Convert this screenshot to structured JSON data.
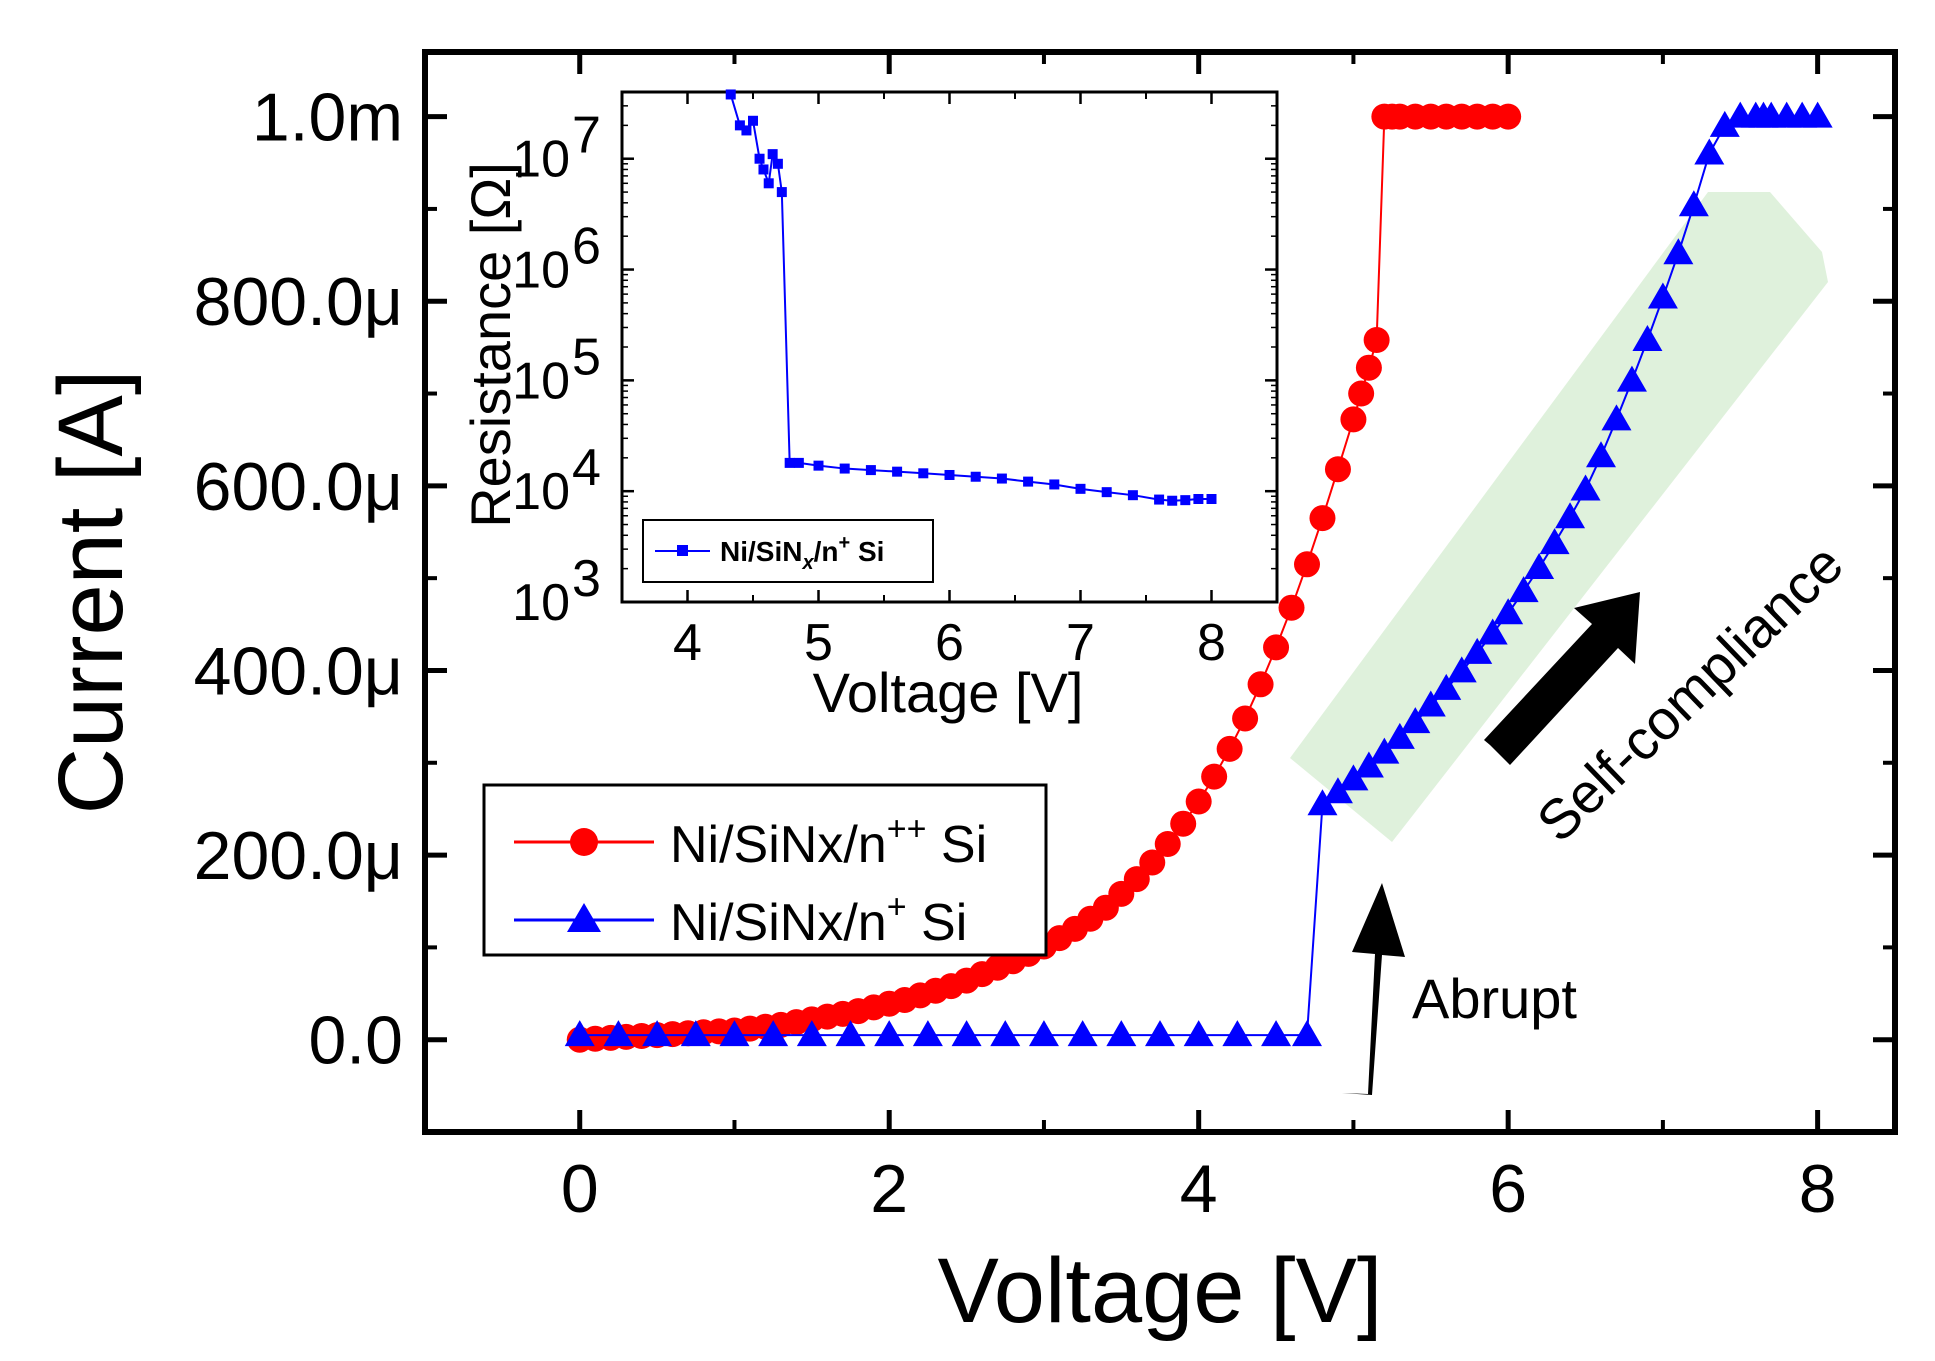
{
  "colors": {
    "red_series": "#ff0000",
    "blue_series": "#0000ff",
    "inset_series": "#0000ff",
    "highlight": "#dcefd8",
    "arrow": "#000000"
  },
  "chart_data": [
    {
      "id": "main",
      "type": "scatter",
      "title": "",
      "xlabel": "Voltage [V]",
      "ylabel": "Current [A]",
      "xlim": [
        -1,
        8.5
      ],
      "ylim": [
        -0.0001,
        0.00107
      ],
      "xticks": [
        0,
        2,
        4,
        6,
        8
      ],
      "xtick_labels": [
        "0",
        "2",
        "4",
        "6",
        "8"
      ],
      "yticks": [
        0,
        0.0002,
        0.0004,
        0.0006,
        0.0008,
        0.001
      ],
      "ytick_labels": [
        "0.0",
        "200.0μ",
        "400.0μ",
        "600.0μ",
        "800.0μ",
        "1.0m"
      ],
      "grid": false,
      "legend_position": "lower-left",
      "series": [
        {
          "name": "Ni/SiNx/n++ Si",
          "label_main": "Ni/SiNx/n",
          "label_sup": "++",
          "label_tail": " Si",
          "marker": "circle",
          "color": "#ff0000",
          "x": [
            0,
            0.1,
            0.2,
            0.3,
            0.4,
            0.5,
            0.6,
            0.7,
            0.8,
            0.9,
            1.0,
            1.1,
            1.2,
            1.3,
            1.4,
            1.5,
            1.6,
            1.7,
            1.8,
            1.9,
            2.0,
            2.1,
            2.2,
            2.3,
            2.4,
            2.5,
            2.6,
            2.7,
            2.8,
            2.9,
            3.0,
            3.1,
            3.2,
            3.3,
            3.4,
            3.5,
            3.6,
            3.7,
            3.8,
            3.9,
            4.0,
            4.1,
            4.2,
            4.3,
            4.4,
            4.5,
            4.6,
            4.7,
            4.8,
            4.9,
            5.0,
            5.05,
            5.1,
            5.15,
            5.2,
            5.25,
            5.3,
            5.4,
            5.5,
            5.6,
            5.7,
            5.8,
            5.9,
            6.0
          ],
          "y": [
            0,
            1e-06,
            2e-06,
            3e-06,
            4e-06,
            5e-06,
            6e-06,
            7e-06,
            8e-06,
            9e-06,
            1e-05,
            1.2e-05,
            1.4e-05,
            1.6e-05,
            1.9e-05,
            2.2e-05,
            2.5e-05,
            2.8e-05,
            3.1e-05,
            3.5e-05,
            3.9e-05,
            4.3e-05,
            4.8e-05,
            5.3e-05,
            5.8e-05,
            6.4e-05,
            7.1e-05,
            7.8e-05,
            8.5e-05,
            9.3e-05,
            0.000101,
            0.00011,
            0.00012,
            0.000131,
            0.000143,
            0.000158,
            0.000174,
            0.000192,
            0.000212,
            0.000234,
            0.000258,
            0.000285,
            0.000315,
            0.000348,
            0.000385,
            0.000425,
            0.000468,
            0.000515,
            0.000565,
            0.000618,
            0.000672,
            0.0007,
            0.000728,
            0.000758,
            0.001,
            0.001,
            0.001,
            0.001,
            0.001,
            0.001,
            0.001,
            0.001,
            0.001,
            0.001
          ]
        },
        {
          "name": "Ni/SiNx/n+ Si",
          "label_main": "Ni/SiNx/n",
          "label_sup": "+",
          "label_tail": " Si",
          "marker": "triangle",
          "color": "#0000ff",
          "x": [
            0,
            0.25,
            0.5,
            0.75,
            1.0,
            1.25,
            1.5,
            1.75,
            2.0,
            2.25,
            2.5,
            2.75,
            3.0,
            3.25,
            3.5,
            3.75,
            4.0,
            4.25,
            4.5,
            4.7,
            4.8,
            4.9,
            5.0,
            5.1,
            5.2,
            5.3,
            5.4,
            5.5,
            5.6,
            5.7,
            5.8,
            5.9,
            6.0,
            6.1,
            6.2,
            6.3,
            6.4,
            6.5,
            6.6,
            6.7,
            6.8,
            6.9,
            7.0,
            7.1,
            7.2,
            7.3,
            7.4,
            7.5,
            7.6,
            7.65,
            7.7,
            7.8,
            7.9,
            8.0
          ],
          "y": [
            5e-06,
            5e-06,
            5e-06,
            5e-06,
            5e-06,
            5e-06,
            5e-06,
            5e-06,
            5e-06,
            5e-06,
            5e-06,
            5e-06,
            5e-06,
            5e-06,
            5e-06,
            5e-06,
            5e-06,
            5e-06,
            5e-06,
            5e-06,
            0.000255,
            0.000268,
            0.000282,
            0.000296,
            0.000311,
            0.000327,
            0.000344,
            0.000362,
            0.00038,
            0.000399,
            0.000419,
            0.00044,
            0.000462,
            0.000486,
            0.000511,
            0.000538,
            0.000566,
            0.000596,
            0.000632,
            0.000672,
            0.000714,
            0.000758,
            0.000804,
            0.000852,
            0.000904,
            0.00096,
            0.00099,
            0.001,
            0.001,
            0.001,
            0.001,
            0.001,
            0.001,
            0.001
          ]
        }
      ],
      "annotations": [
        {
          "text": "Abrupt",
          "type": "arrow-label"
        },
        {
          "text": "Self-compliance",
          "type": "arrow-label",
          "rotation_deg": -44
        }
      ]
    },
    {
      "id": "inset",
      "type": "line",
      "title": "",
      "xlabel": "Voltage [V]",
      "ylabel": "Resistance [Ω]",
      "yscale": "log",
      "xlim": [
        3.5,
        8.5
      ],
      "ylim": [
        1000,
        40000000
      ],
      "xticks": [
        4,
        5,
        6,
        7,
        8
      ],
      "xtick_labels": [
        "4",
        "5",
        "6",
        "7",
        "8"
      ],
      "ytick_exponents": [
        3,
        4,
        5,
        6,
        7
      ],
      "ytick_base": "10",
      "grid": false,
      "legend_position": "lower-left",
      "series": [
        {
          "name": "Ni/SiNx/n+ Si",
          "label_a": "Ni/SiN",
          "label_sub": "x",
          "label_b": "/n",
          "label_sup": "+",
          "label_c": " Si",
          "marker": "square",
          "color": "#0000ff",
          "x": [
            4.33,
            4.4,
            4.45,
            4.5,
            4.55,
            4.58,
            4.62,
            4.65,
            4.69,
            4.72,
            4.78,
            4.85,
            5.0,
            5.2,
            5.4,
            5.6,
            5.8,
            6.0,
            6.2,
            6.4,
            6.6,
            6.8,
            7.0,
            7.2,
            7.4,
            7.6,
            7.7,
            7.8,
            7.9,
            8.0
          ],
          "y": [
            38000000,
            20000000,
            18000000,
            22000000,
            10000000,
            8000000,
            6000000,
            11000000,
            9000000,
            5000000,
            18000,
            18000,
            17000,
            16000,
            15500,
            15000,
            14500,
            14000,
            13500,
            13000,
            12200,
            11500,
            10500,
            9800,
            9200,
            8400,
            8200,
            8300,
            8500,
            8500
          ]
        }
      ]
    }
  ]
}
